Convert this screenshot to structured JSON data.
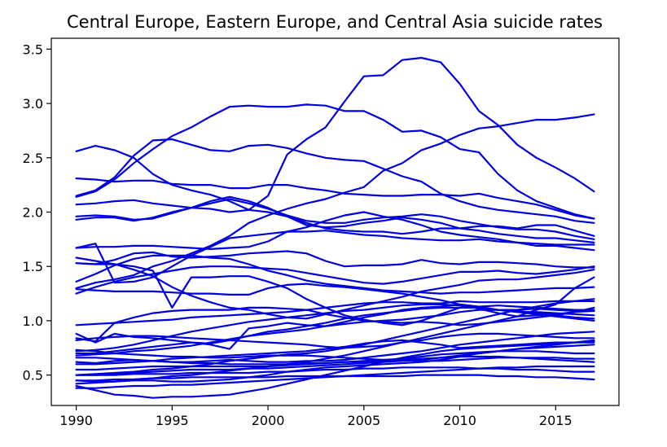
{
  "chart_data": {
    "type": "line",
    "title": "Central Europe, Eastern Europe, and Central Asia suicide rates",
    "xlabel": "",
    "ylabel": "",
    "xlim": [
      1988.7,
      2018.3
    ],
    "ylim": [
      0.22,
      3.6
    ],
    "xticks": [
      1990,
      1995,
      2000,
      2005,
      2010,
      2015
    ],
    "yticks": [
      0.5,
      1.0,
      1.5,
      2.0,
      2.5,
      3.0,
      3.5
    ],
    "grid": false,
    "line_color": "#0000dd",
    "x": [
      1990,
      1991,
      1992,
      1993,
      1994,
      1995,
      1996,
      1997,
      1998,
      1999,
      2000,
      2001,
      2002,
      2003,
      2004,
      2005,
      2006,
      2007,
      2008,
      2009,
      2010,
      2011,
      2012,
      2013,
      2014,
      2015,
      2016,
      2017
    ],
    "series": [
      {
        "values": [
          2.15,
          2.2,
          2.32,
          2.52,
          2.66,
          2.67,
          2.62,
          2.57,
          2.56,
          2.61,
          2.62,
          2.59,
          2.54,
          2.5,
          2.48,
          2.47,
          2.4,
          2.33,
          2.28,
          2.17,
          2.1,
          2.05,
          2.02,
          2.0,
          1.98,
          1.96,
          1.92,
          1.9
        ]
      },
      {
        "values": [
          2.14,
          2.19,
          2.3,
          2.45,
          2.58,
          2.7,
          2.78,
          2.88,
          2.97,
          2.98,
          2.97,
          2.97,
          2.99,
          2.98,
          2.93,
          2.93,
          2.85,
          2.74,
          2.75,
          2.69,
          2.58,
          2.55,
          2.35,
          2.2,
          2.1,
          2.04,
          1.98,
          1.94
        ]
      },
      {
        "values": [
          2.56,
          2.61,
          2.57,
          2.5,
          2.35,
          2.25,
          2.2,
          2.16,
          2.1,
          2.02,
          2.15,
          2.53,
          2.67,
          2.78,
          3.02,
          3.25,
          3.26,
          3.4,
          3.42,
          3.38,
          3.18,
          2.93,
          2.8,
          2.62,
          2.5,
          2.41,
          2.31,
          2.19
        ]
      },
      {
        "values": [
          1.3,
          1.35,
          1.38,
          1.42,
          1.5,
          1.55,
          1.62,
          1.69,
          1.78,
          1.9,
          1.97,
          2.03,
          2.08,
          2.12,
          2.18,
          2.23,
          2.38,
          2.45,
          2.57,
          2.63,
          2.71,
          2.77,
          2.79,
          2.82,
          2.85,
          2.85,
          2.87,
          2.9
        ]
      },
      {
        "values": [
          2.31,
          2.3,
          2.28,
          2.29,
          2.29,
          2.26,
          2.25,
          2.25,
          2.22,
          2.22,
          2.25,
          2.25,
          2.22,
          2.2,
          2.17,
          2.16,
          2.15,
          2.15,
          2.16,
          2.16,
          2.15,
          2.17,
          2.13,
          2.1,
          2.07,
          2.02,
          1.97,
          1.94
        ]
      },
      {
        "values": [
          2.07,
          2.08,
          2.1,
          2.11,
          2.08,
          2.06,
          2.04,
          2.03,
          2.0,
          2.02,
          2.0,
          1.96,
          1.9,
          1.85,
          1.83,
          1.82,
          1.82,
          1.8,
          1.82,
          1.85,
          1.85,
          1.87,
          1.87,
          1.85,
          1.88,
          1.88,
          1.83,
          1.78
        ]
      },
      {
        "values": [
          1.93,
          1.95,
          1.95,
          1.92,
          1.95,
          2.0,
          2.04,
          2.08,
          2.12,
          2.08,
          2.03,
          1.97,
          1.92,
          1.9,
          1.9,
          1.93,
          1.95,
          1.96,
          1.98,
          1.96,
          1.92,
          1.89,
          1.86,
          1.84,
          1.84,
          1.82,
          1.78,
          1.75
        ]
      },
      {
        "values": [
          1.96,
          1.97,
          1.96,
          1.93,
          1.94,
          1.99,
          2.04,
          2.1,
          2.14,
          2.1,
          2.04,
          1.96,
          1.88,
          1.86,
          1.87,
          1.9,
          1.92,
          1.95,
          1.93,
          1.9,
          1.85,
          1.83,
          1.8,
          1.78,
          1.76,
          1.76,
          1.74,
          1.72
        ]
      },
      {
        "values": [
          1.67,
          1.68,
          1.68,
          1.69,
          1.69,
          1.68,
          1.67,
          1.66,
          1.67,
          1.68,
          1.73,
          1.82,
          1.86,
          1.92,
          1.97,
          2.0,
          1.96,
          1.93,
          1.88,
          1.82,
          1.79,
          1.77,
          1.75,
          1.72,
          1.69,
          1.69,
          1.67,
          1.65
        ]
      },
      {
        "values": [
          1.58,
          1.55,
          1.52,
          1.47,
          1.41,
          1.31,
          1.23,
          1.17,
          1.12,
          1.1,
          1.06,
          1.03,
          1.02,
          1.06,
          1.1,
          1.14,
          1.18,
          1.22,
          1.27,
          1.3,
          1.33,
          1.37,
          1.38,
          1.38,
          1.4,
          1.42,
          1.44,
          1.47
        ]
      },
      {
        "values": [
          1.53,
          1.52,
          1.56,
          1.62,
          1.63,
          1.59,
          1.58,
          1.59,
          1.6,
          1.62,
          1.63,
          1.64,
          1.62,
          1.55,
          1.5,
          1.51,
          1.51,
          1.52,
          1.56,
          1.53,
          1.52,
          1.54,
          1.54,
          1.53,
          1.52,
          1.5,
          1.49,
          1.49
        ]
      },
      {
        "values": [
          1.36,
          1.43,
          1.51,
          1.57,
          1.6,
          1.6,
          1.6,
          1.58,
          1.57,
          1.52,
          1.46,
          1.42,
          1.37,
          1.34,
          1.32,
          1.3,
          1.28,
          1.27,
          1.26,
          1.25,
          1.26,
          1.26,
          1.27,
          1.28,
          1.29,
          1.3,
          1.3,
          1.31
        ]
      },
      {
        "values": [
          1.25,
          1.31,
          1.36,
          1.4,
          1.43,
          1.46,
          1.49,
          1.5,
          1.5,
          1.49,
          1.48,
          1.47,
          1.44,
          1.41,
          1.38,
          1.35,
          1.34,
          1.36,
          1.39,
          1.42,
          1.45,
          1.45,
          1.46,
          1.44,
          1.43,
          1.45,
          1.47,
          1.5
        ]
      },
      {
        "values": [
          1.67,
          1.71,
          1.35,
          1.36,
          1.4,
          1.5,
          1.6,
          1.68,
          1.76,
          1.78,
          1.8,
          1.82,
          1.82,
          1.83,
          1.81,
          1.79,
          1.78,
          1.76,
          1.75,
          1.74,
          1.74,
          1.75,
          1.73,
          1.72,
          1.71,
          1.7,
          1.7,
          1.7
        ]
      },
      {
        "values": [
          1.29,
          1.28,
          1.27,
          1.27,
          1.27,
          1.26,
          1.25,
          1.25,
          1.24,
          1.24,
          1.3,
          1.33,
          1.34,
          1.32,
          1.31,
          1.29,
          1.27,
          1.25,
          1.22,
          1.19,
          1.15,
          1.11,
          1.07,
          1.04,
          1.05,
          1.06,
          1.08,
          1.09
        ]
      },
      {
        "values": [
          1.53,
          1.52,
          1.52,
          1.5,
          1.46,
          1.12,
          1.4,
          1.4,
          1.41,
          1.41,
          1.36,
          1.3,
          1.2,
          1.12,
          1.05,
          1.01,
          0.98,
          0.96,
          1.0,
          1.06,
          1.12,
          1.13,
          1.14,
          1.13,
          1.12,
          1.11,
          1.1,
          1.1
        ]
      },
      {
        "values": [
          0.84,
          0.81,
          0.98,
          1.03,
          1.07,
          1.09,
          1.1,
          1.1,
          1.1,
          1.12,
          1.12,
          1.11,
          1.1,
          1.06,
          1.03,
          1.0,
          0.99,
          0.98,
          0.99,
          0.98,
          0.96,
          0.97,
          0.99,
          1.01,
          1.03,
          1.05,
          1.08,
          1.12
        ]
      },
      {
        "values": [
          0.96,
          0.97,
          0.98,
          0.99,
          1.0,
          1.01,
          1.03,
          1.04,
          1.05,
          1.06,
          1.07,
          1.08,
          1.1,
          1.12,
          1.14,
          1.16,
          1.17,
          1.17,
          1.16,
          1.16,
          1.18,
          1.17,
          1.17,
          1.17,
          1.17,
          1.18,
          1.18,
          1.18
        ]
      },
      {
        "values": [
          0.72,
          0.73,
          0.75,
          0.78,
          0.82,
          0.86,
          0.9,
          0.93,
          0.96,
          0.99,
          1.01,
          1.03,
          1.05,
          1.07,
          1.09,
          1.1,
          1.12,
          1.14,
          1.15,
          1.15,
          1.14,
          1.12,
          1.1,
          1.08,
          1.08,
          1.07,
          1.06,
          1.05
        ]
      },
      {
        "values": [
          0.88,
          0.8,
          0.88,
          0.85,
          0.84,
          0.82,
          0.8,
          0.79,
          0.82,
          0.86,
          0.9,
          0.92,
          0.95,
          0.98,
          1.02,
          1.05,
          1.07,
          1.09,
          1.11,
          1.12,
          1.12,
          1.12,
          1.1,
          1.09,
          1.07,
          1.05,
          1.03,
          1.02
        ]
      },
      {
        "values": [
          0.7,
          0.7,
          0.72,
          0.74,
          0.76,
          0.78,
          0.8,
          0.78,
          0.74,
          0.93,
          0.95,
          0.98,
          0.96,
          0.95,
          0.97,
          0.99,
          1.0,
          1.01,
          1.03,
          1.05,
          1.08,
          1.1,
          1.1,
          1.1,
          1.11,
          1.1,
          1.09,
          1.09
        ]
      },
      {
        "values": [
          0.68,
          0.69,
          0.7,
          0.72,
          0.73,
          0.75,
          0.77,
          0.8,
          0.83,
          0.86,
          0.88,
          0.9,
          0.92,
          0.95,
          0.99,
          1.03,
          1.06,
          1.1,
          1.12,
          1.13,
          1.15,
          1.13,
          1.1,
          1.08,
          1.06,
          1.04,
          1.02,
          1.0
        ]
      },
      {
        "values": [
          0.5,
          0.51,
          0.52,
          0.53,
          0.55,
          0.56,
          0.58,
          0.6,
          0.63,
          0.65,
          0.67,
          0.69,
          0.7,
          0.72,
          0.75,
          0.78,
          0.82,
          0.86,
          0.9,
          0.94,
          0.98,
          1.02,
          1.06,
          1.1,
          1.13,
          1.16,
          1.18,
          1.2
        ]
      },
      {
        "values": [
          0.42,
          0.43,
          0.44,
          0.46,
          0.47,
          0.49,
          0.5,
          0.52,
          0.54,
          0.56,
          0.58,
          0.6,
          0.62,
          0.65,
          0.68,
          0.72,
          0.76,
          0.8,
          0.84,
          0.88,
          0.92,
          0.96,
          1.0,
          1.04,
          1.1,
          1.15,
          1.3,
          1.4
        ]
      },
      {
        "values": [
          0.62,
          0.61,
          0.63,
          0.64,
          0.63,
          0.62,
          0.62,
          0.63,
          0.64,
          0.63,
          0.62,
          0.62,
          0.63,
          0.63,
          0.64,
          0.66,
          0.68,
          0.7,
          0.72,
          0.75,
          0.78,
          0.8,
          0.82,
          0.84,
          0.86,
          0.88,
          0.89,
          0.9
        ]
      },
      {
        "values": [
          0.82,
          0.84,
          0.85,
          0.86,
          0.86,
          0.85,
          0.84,
          0.83,
          0.82,
          0.81,
          0.8,
          0.79,
          0.78,
          0.76,
          0.75,
          0.76,
          0.77,
          0.8,
          0.82,
          0.85,
          0.87,
          0.88,
          0.88,
          0.87,
          0.86,
          0.85,
          0.84,
          0.84
        ]
      },
      {
        "values": [
          0.6,
          0.6,
          0.61,
          0.62,
          0.63,
          0.65,
          0.66,
          0.67,
          0.68,
          0.69,
          0.7,
          0.71,
          0.72,
          0.74,
          0.76,
          0.79,
          0.81,
          0.82,
          0.8,
          0.78,
          0.75,
          0.76,
          0.77,
          0.78,
          0.79,
          0.8,
          0.8,
          0.8
        ]
      },
      {
        "values": [
          0.73,
          0.72,
          0.7,
          0.69,
          0.68,
          0.67,
          0.67,
          0.66,
          0.66,
          0.67,
          0.68,
          0.68,
          0.68,
          0.67,
          0.66,
          0.65,
          0.64,
          0.64,
          0.63,
          0.63,
          0.64,
          0.65,
          0.66,
          0.66,
          0.65,
          0.64,
          0.63,
          0.62
        ]
      },
      {
        "values": [
          0.55,
          0.55,
          0.56,
          0.57,
          0.58,
          0.58,
          0.58,
          0.58,
          0.58,
          0.58,
          0.58,
          0.59,
          0.6,
          0.61,
          0.62,
          0.63,
          0.64,
          0.65,
          0.67,
          0.69,
          0.7,
          0.71,
          0.72,
          0.72,
          0.72,
          0.71,
          0.7,
          0.7
        ]
      },
      {
        "values": [
          0.5,
          0.5,
          0.51,
          0.52,
          0.53,
          0.54,
          0.55,
          0.55,
          0.55,
          0.56,
          0.56,
          0.57,
          0.58,
          0.59,
          0.6,
          0.61,
          0.62,
          0.63,
          0.64,
          0.66,
          0.68,
          0.7,
          0.72,
          0.74,
          0.76,
          0.78,
          0.8,
          0.82
        ]
      },
      {
        "values": [
          0.4,
          0.36,
          0.32,
          0.31,
          0.29,
          0.3,
          0.3,
          0.31,
          0.32,
          0.35,
          0.38,
          0.42,
          0.46,
          0.5,
          0.54,
          0.58,
          0.62,
          0.66,
          0.69,
          0.72,
          0.74,
          0.75,
          0.76,
          0.77,
          0.78,
          0.79,
          0.8,
          0.81
        ]
      },
      {
        "values": [
          0.45,
          0.44,
          0.44,
          0.45,
          0.45,
          0.44,
          0.44,
          0.45,
          0.46,
          0.48,
          0.5,
          0.53,
          0.55,
          0.57,
          0.58,
          0.59,
          0.6,
          0.61,
          0.62,
          0.64,
          0.67,
          0.7,
          0.72,
          0.74,
          0.75,
          0.76,
          0.77,
          0.78
        ]
      },
      {
        "values": [
          0.38,
          0.38,
          0.39,
          0.4,
          0.4,
          0.41,
          0.41,
          0.42,
          0.43,
          0.44,
          0.45,
          0.46,
          0.47,
          0.48,
          0.49,
          0.5,
          0.51,
          0.52,
          0.53,
          0.54,
          0.55,
          0.56,
          0.57,
          0.57,
          0.58,
          0.58,
          0.58,
          0.58
        ]
      },
      {
        "values": [
          0.5,
          0.5,
          0.5,
          0.51,
          0.51,
          0.51,
          0.52,
          0.52,
          0.52,
          0.52,
          0.53,
          0.53,
          0.54,
          0.55,
          0.55,
          0.56,
          0.56,
          0.57,
          0.57,
          0.57,
          0.57,
          0.56,
          0.56,
          0.55,
          0.55,
          0.54,
          0.53,
          0.53
        ]
      },
      {
        "values": [
          0.45,
          0.45,
          0.46,
          0.46,
          0.47,
          0.47,
          0.48,
          0.48,
          0.48,
          0.48,
          0.48,
          0.49,
          0.49,
          0.49,
          0.49,
          0.49,
          0.49,
          0.49,
          0.5,
          0.5,
          0.5,
          0.5,
          0.49,
          0.49,
          0.48,
          0.48,
          0.47,
          0.46
        ]
      },
      {
        "values": [
          0.66,
          0.66,
          0.65,
          0.64,
          0.63,
          0.62,
          0.61,
          0.61,
          0.6,
          0.6,
          0.6,
          0.6,
          0.61,
          0.61,
          0.62,
          0.62,
          0.63,
          0.64,
          0.65,
          0.66,
          0.67,
          0.67,
          0.67,
          0.66,
          0.66,
          0.66,
          0.65,
          0.65
        ]
      }
    ]
  }
}
